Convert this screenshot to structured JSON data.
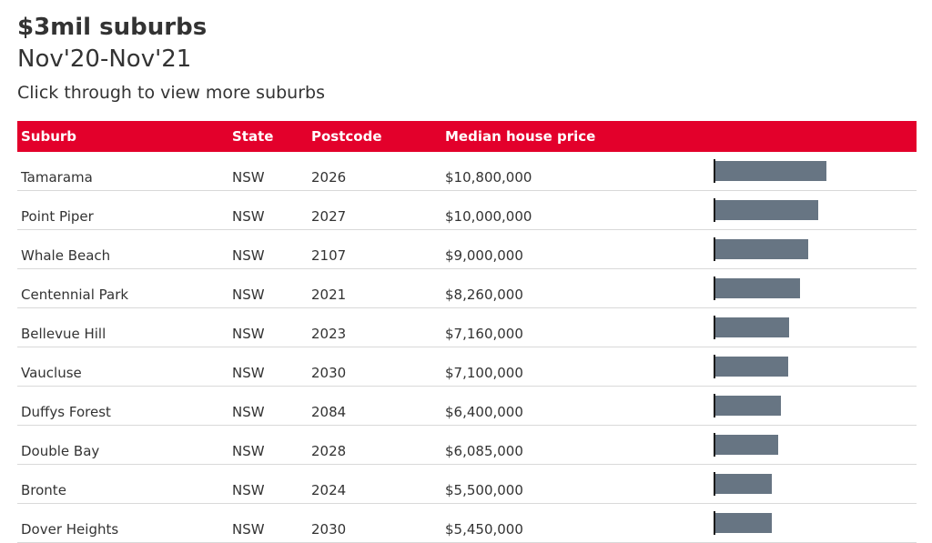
{
  "header": {
    "title": "$3mil suburbs",
    "subtitle": "Nov'20-Nov'21",
    "description": "Click through to view more suburbs"
  },
  "table": {
    "columns": [
      "Suburb",
      "State",
      "Postcode",
      "Median house price"
    ]
  },
  "colors": {
    "header_bg": "#e3002b",
    "bar": "#677583"
  },
  "chart_data": {
    "type": "table",
    "title": "$3mil suburbs",
    "subtitle": "Nov'20-Nov'21",
    "columns": [
      "Suburb",
      "State",
      "Postcode",
      "Median house price"
    ],
    "rows": [
      {
        "suburb": "Tamarama",
        "state": "NSW",
        "postcode": "2026",
        "price_label": "$10,800,000",
        "value": 10800000
      },
      {
        "suburb": "Point Piper",
        "state": "NSW",
        "postcode": "2027",
        "price_label": "$10,000,000",
        "value": 10000000
      },
      {
        "suburb": "Whale Beach",
        "state": "NSW",
        "postcode": "2107",
        "price_label": "$9,000,000",
        "value": 9000000
      },
      {
        "suburb": "Centennial Park",
        "state": "NSW",
        "postcode": "2021",
        "price_label": "$8,260,000",
        "value": 8260000
      },
      {
        "suburb": "Bellevue Hill",
        "state": "NSW",
        "postcode": "2023",
        "price_label": "$7,160,000",
        "value": 7160000
      },
      {
        "suburb": "Vaucluse",
        "state": "NSW",
        "postcode": "2030",
        "price_label": "$7,100,000",
        "value": 7100000
      },
      {
        "suburb": "Duffys Forest",
        "state": "NSW",
        "postcode": "2084",
        "price_label": "$6,400,000",
        "value": 6400000
      },
      {
        "suburb": "Double Bay",
        "state": "NSW",
        "postcode": "2028",
        "price_label": "$6,085,000",
        "value": 6085000
      },
      {
        "suburb": "Bronte",
        "state": "NSW",
        "postcode": "2024",
        "price_label": "$5,500,000",
        "value": 5500000
      },
      {
        "suburb": "Dover Heights",
        "state": "NSW",
        "postcode": "2030",
        "price_label": "$5,450,000",
        "value": 5450000
      }
    ]
  }
}
